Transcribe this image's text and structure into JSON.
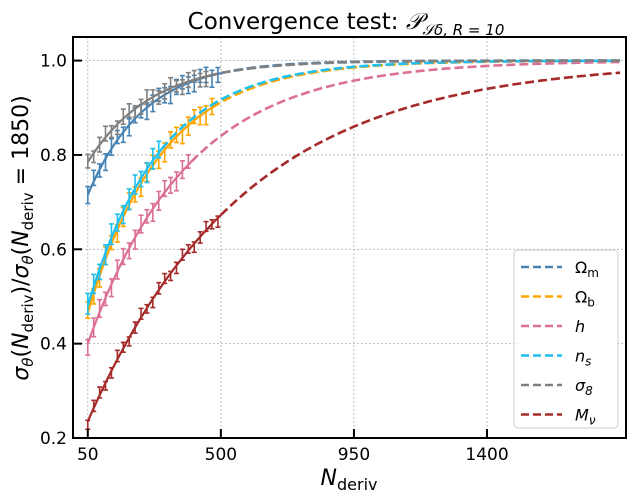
{
  "chart_data": {
    "type": "line",
    "title": "Convergence test: P_{Sδ, R=10}",
    "title_parts": {
      "prefix": "Convergence test: ",
      "symbol": "𝒫",
      "subscript": "𝒮δ, R = 10"
    },
    "xlabel": {
      "base": "N",
      "sub": "deriv"
    },
    "ylabel": {
      "text": "σ_θ(N_deriv)/σ_θ(N_deriv = 1850)",
      "sigma": "σ",
      "theta": "θ",
      "N": "N",
      "sub": "deriv",
      "eq": " = 1850"
    },
    "xlim": [
      0,
      1870
    ],
    "ylim": [
      0.2,
      1.05
    ],
    "xticks": [
      50,
      500,
      950,
      1400
    ],
    "xtick_labels": [
      "50",
      "500",
      "950",
      "1400"
    ],
    "yticks": [
      0.2,
      0.4,
      0.6,
      0.8,
      1.0
    ],
    "ytick_labels": [
      "0.2",
      "0.4",
      "0.6",
      "0.8",
      "1.0"
    ],
    "grid": true,
    "legend_position": "lower-right",
    "series": [
      {
        "name": "Ωm",
        "label_base": "Ω",
        "label_sub": "m",
        "color": "#4682b4",
        "start": 0.715,
        "tau": 190,
        "measured_until": 500,
        "errbar": 0.018
      },
      {
        "name": "Ωb",
        "label_base": "Ω",
        "label_sub": "b",
        "color": "#ffa500",
        "start": 0.465,
        "tau": 250,
        "measured_until": 470,
        "errbar": 0.02
      },
      {
        "name": "h",
        "label_base": "h",
        "label_sub": "",
        "italic": true,
        "color": "#db7093",
        "start": 0.4,
        "tau": 340,
        "measured_until": 400,
        "errbar": 0.02
      },
      {
        "name": "n_s",
        "label_base": "n",
        "label_sub": "s",
        "italic": true,
        "color": "#1fbfef",
        "start": 0.48,
        "tau": 245,
        "measured_until": 300,
        "errbar": 0.022
      },
      {
        "name": "σ8",
        "label_base": "σ",
        "label_sub": "8",
        "italic": true,
        "color": "#808080",
        "start": 0.785,
        "tau": 215,
        "measured_until": 460,
        "errbar": 0.016
      },
      {
        "name": "Mν",
        "label_base": "M",
        "label_sub": "ν",
        "italic": true,
        "color": "#a52a2a",
        "start": 0.235,
        "tau": 530,
        "measured_until": 500,
        "errbar": 0.012
      }
    ],
    "x_end": 1850,
    "measure_step": 20
  }
}
